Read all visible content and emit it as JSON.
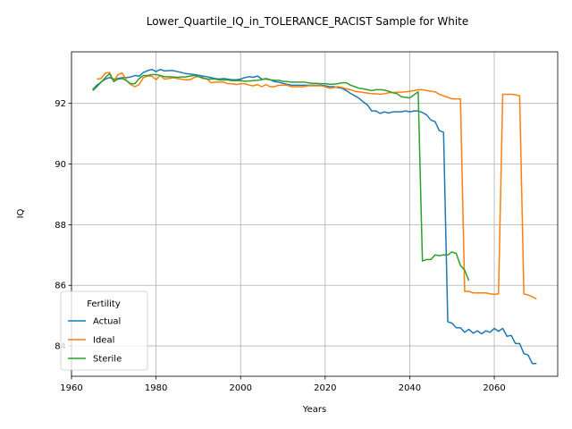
{
  "chart_data": {
    "type": "line",
    "title": "Lower_Quartile_IQ_in_TOLERANCE_RACIST Sample for White",
    "xlabel": "Years",
    "ylabel": "IQ",
    "xlim": [
      1960,
      2075
    ],
    "ylim": [
      83,
      93.7
    ],
    "xticks": [
      1960,
      1980,
      2000,
      2020,
      2040,
      2060
    ],
    "yticks": [
      84,
      86,
      88,
      90,
      92
    ],
    "grid": true,
    "legend": {
      "title": "Fertility",
      "position": "lower-left"
    },
    "colors": {
      "Actual": "#1f77b4",
      "Ideal": "#ff7f0e",
      "Sterile": "#2ca02c"
    },
    "series": [
      {
        "name": "Actual",
        "x": [
          1965,
          1966,
          1967,
          1968,
          1969,
          1970,
          1971,
          1972,
          1973,
          1974,
          1975,
          1976,
          1977,
          1978,
          1979,
          1980,
          1981,
          1982,
          1983,
          1984,
          1985,
          1986,
          1987,
          1988,
          1989,
          1990,
          1991,
          1992,
          1993,
          1994,
          1995,
          1996,
          1997,
          1998,
          1999,
          2000,
          2001,
          2002,
          2003,
          2004,
          2005,
          2006,
          2007,
          2008,
          2009,
          2010,
          2011,
          2012,
          2013,
          2014,
          2015,
          2016,
          2017,
          2018,
          2019,
          2020,
          2021,
          2022,
          2023,
          2024,
          2025,
          2026,
          2027,
          2028,
          2029,
          2030,
          2031,
          2032,
          2033,
          2034,
          2035,
          2036,
          2037,
          2038,
          2039,
          2040,
          2041,
          2042,
          2043,
          2044,
          2045,
          2046,
          2047,
          2048,
          2049,
          2050,
          2051,
          2052,
          2053,
          2054,
          2055,
          2056,
          2057,
          2058,
          2059,
          2060,
          2061,
          2062,
          2063,
          2064,
          2065,
          2066,
          2067,
          2068,
          2069,
          2070
        ],
        "y": [
          92.45,
          92.6,
          92.7,
          92.8,
          92.85,
          92.8,
          92.82,
          92.85,
          92.85,
          92.87,
          92.92,
          92.9,
          93.02,
          93.08,
          93.12,
          93.05,
          93.12,
          93.07,
          93.08,
          93.08,
          93.05,
          93.02,
          92.98,
          92.97,
          92.95,
          92.93,
          92.9,
          92.88,
          92.85,
          92.82,
          92.8,
          92.82,
          92.8,
          92.78,
          92.78,
          92.8,
          92.85,
          92.88,
          92.86,
          92.9,
          92.8,
          92.8,
          92.78,
          92.72,
          92.7,
          92.66,
          92.63,
          92.6,
          92.6,
          92.6,
          92.6,
          92.6,
          92.6,
          92.6,
          92.6,
          92.58,
          92.55,
          92.55,
          92.52,
          92.5,
          92.42,
          92.33,
          92.25,
          92.17,
          92.05,
          91.95,
          91.75,
          91.75,
          91.67,
          91.72,
          91.68,
          91.72,
          91.72,
          91.72,
          91.75,
          91.72,
          91.75,
          91.75,
          91.7,
          91.62,
          91.45,
          91.4,
          91.1,
          91.05,
          84.8,
          84.75,
          84.6,
          84.6,
          84.45,
          84.55,
          84.42,
          84.5,
          84.4,
          84.5,
          84.45,
          84.58,
          84.48,
          84.58,
          84.32,
          84.35,
          84.08,
          84.08,
          83.75,
          83.7,
          83.42,
          83.42
        ]
      },
      {
        "name": "Ideal",
        "x": [
          1966,
          1967,
          1968,
          1969,
          1970,
          1971,
          1972,
          1973,
          1974,
          1975,
          1976,
          1977,
          1978,
          1979,
          1980,
          1981,
          1982,
          1983,
          1984,
          1985,
          1986,
          1987,
          1988,
          1989,
          1990,
          1991,
          1992,
          1993,
          1994,
          1995,
          1996,
          1997,
          1998,
          1999,
          2000,
          2001,
          2002,
          2003,
          2004,
          2005,
          2006,
          2007,
          2008,
          2009,
          2010,
          2011,
          2012,
          2013,
          2014,
          2015,
          2016,
          2017,
          2018,
          2019,
          2020,
          2021,
          2022,
          2023,
          2024,
          2025,
          2026,
          2027,
          2028,
          2029,
          2030,
          2031,
          2032,
          2033,
          2034,
          2035,
          2036,
          2037,
          2038,
          2039,
          2040,
          2041,
          2042,
          2043,
          2044,
          2045,
          2046,
          2047,
          2048,
          2049,
          2050,
          2051,
          2052,
          2053,
          2054,
          2055,
          2056,
          2057,
          2058,
          2059,
          2060,
          2061,
          2062,
          2063,
          2064,
          2065,
          2066,
          2067,
          2068,
          2069,
          2070
        ],
        "y": [
          92.8,
          92.82,
          93.0,
          93.02,
          92.72,
          92.95,
          93.0,
          92.75,
          92.62,
          92.55,
          92.62,
          92.85,
          92.9,
          92.9,
          92.78,
          92.92,
          92.8,
          92.82,
          92.85,
          92.82,
          92.8,
          92.78,
          92.78,
          92.85,
          92.9,
          92.82,
          92.82,
          92.68,
          92.7,
          92.7,
          92.7,
          92.65,
          92.65,
          92.62,
          92.65,
          92.65,
          92.6,
          92.58,
          92.62,
          92.55,
          92.62,
          92.55,
          92.55,
          92.6,
          92.6,
          92.6,
          92.55,
          92.55,
          92.55,
          92.55,
          92.58,
          92.58,
          92.58,
          92.58,
          92.55,
          92.5,
          92.52,
          92.55,
          92.52,
          92.48,
          92.45,
          92.4,
          92.38,
          92.36,
          92.34,
          92.32,
          92.32,
          92.3,
          92.32,
          92.35,
          92.36,
          92.37,
          92.37,
          92.38,
          92.4,
          92.42,
          92.45,
          92.45,
          92.42,
          92.4,
          92.38,
          92.3,
          92.25,
          92.2,
          92.15,
          92.15,
          92.15,
          85.8,
          85.8,
          85.75,
          85.75,
          85.75,
          85.75,
          85.72,
          85.7,
          85.72,
          92.3,
          92.3,
          92.3,
          92.28,
          92.25,
          85.72,
          85.68,
          85.62,
          85.55
        ]
      },
      {
        "name": "Sterile",
        "x": [
          1965,
          1966,
          1967,
          1968,
          1969,
          1970,
          1971,
          1972,
          1973,
          1974,
          1975,
          1976,
          1977,
          1978,
          1979,
          1980,
          1981,
          1982,
          1983,
          1984,
          1985,
          1986,
          1987,
          1988,
          1989,
          1990,
          1991,
          1992,
          1993,
          1994,
          1995,
          1996,
          1997,
          1998,
          1999,
          2000,
          2001,
          2002,
          2003,
          2004,
          2005,
          2006,
          2007,
          2008,
          2009,
          2010,
          2011,
          2012,
          2013,
          2014,
          2015,
          2016,
          2017,
          2018,
          2019,
          2020,
          2021,
          2022,
          2023,
          2024,
          2025,
          2026,
          2027,
          2028,
          2029,
          2030,
          2031,
          2032,
          2033,
          2034,
          2035,
          2036,
          2037,
          2038,
          2039,
          2040,
          2041,
          2042,
          2043,
          2044,
          2045,
          2046,
          2047,
          2048,
          2049,
          2050,
          2051,
          2052,
          2053,
          2054
        ],
        "y": [
          92.42,
          92.55,
          92.7,
          92.85,
          92.98,
          92.72,
          92.8,
          92.82,
          92.75,
          92.65,
          92.65,
          92.82,
          92.92,
          92.92,
          92.95,
          92.95,
          92.92,
          92.88,
          92.88,
          92.87,
          92.86,
          92.87,
          92.87,
          92.9,
          92.92,
          92.88,
          92.85,
          92.8,
          92.8,
          92.8,
          92.77,
          92.77,
          92.77,
          92.75,
          92.75,
          92.75,
          92.73,
          92.74,
          92.75,
          92.76,
          92.78,
          92.82,
          92.78,
          92.76,
          92.76,
          92.73,
          92.72,
          92.7,
          92.7,
          92.7,
          92.7,
          92.68,
          92.66,
          92.66,
          92.65,
          92.65,
          92.63,
          92.63,
          92.65,
          92.68,
          92.68,
          92.6,
          92.55,
          92.5,
          92.48,
          92.45,
          92.42,
          92.45,
          92.45,
          92.44,
          92.4,
          92.35,
          92.32,
          92.22,
          92.2,
          92.18,
          92.28,
          92.38,
          86.8,
          86.85,
          86.85,
          87.0,
          86.98,
          87.0,
          87.0,
          87.1,
          87.05,
          86.65,
          86.5,
          86.15
        ]
      }
    ]
  }
}
